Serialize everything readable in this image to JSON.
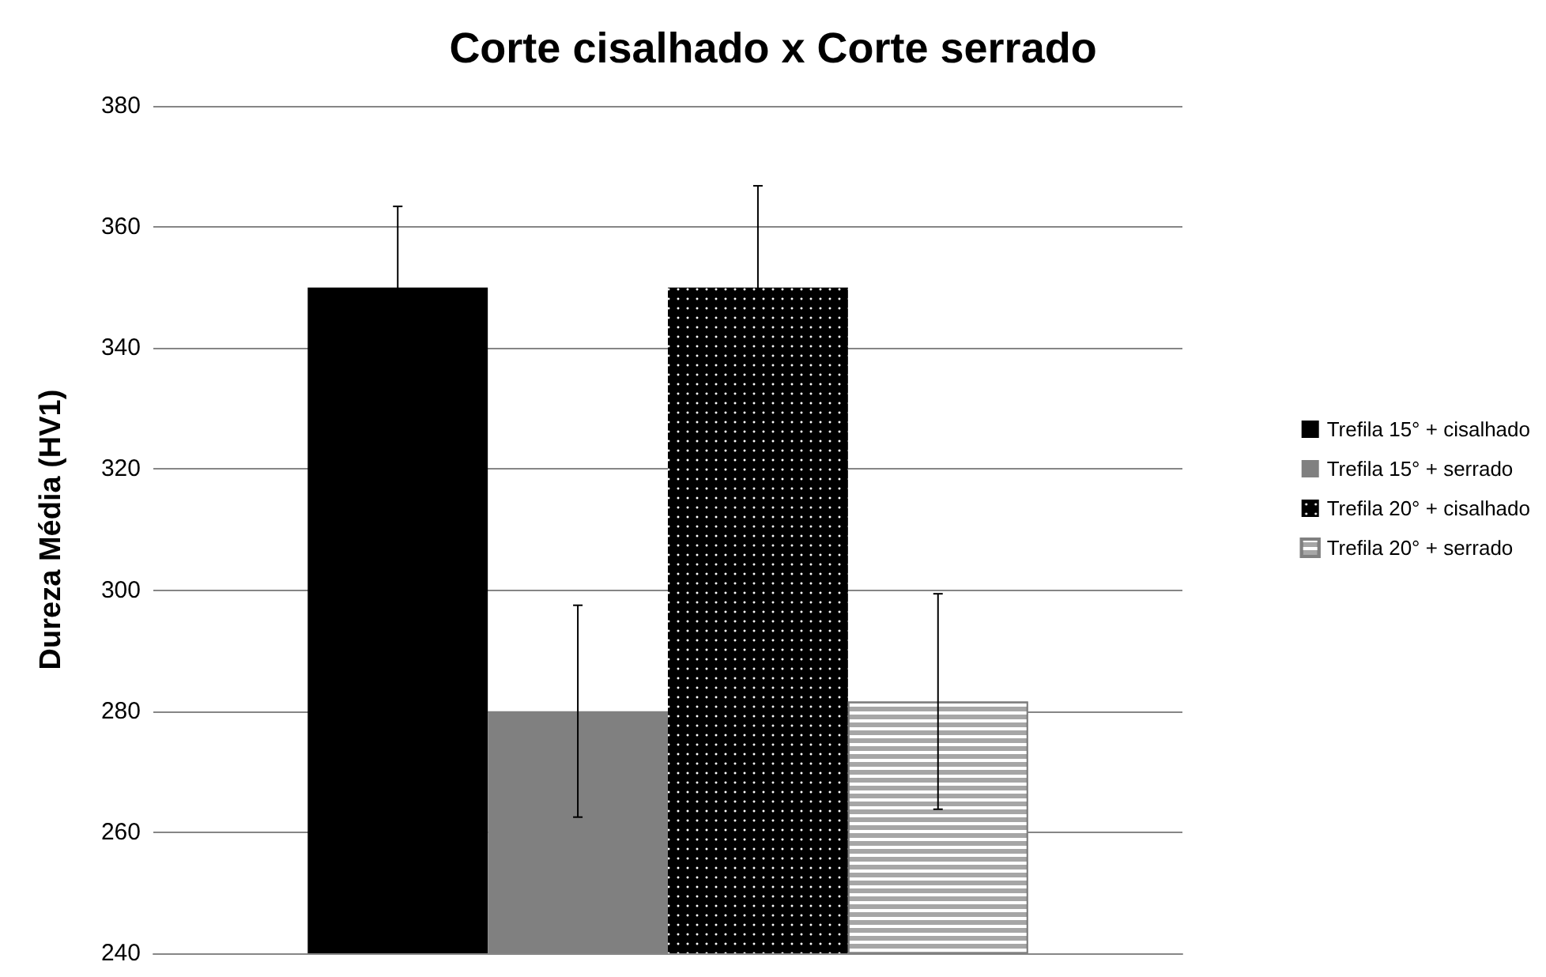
{
  "chart_data": {
    "type": "bar",
    "title": "Corte cisalhado x Corte serrado",
    "ylabel": "Dureza Média (HV1)",
    "categories": [
      null
    ],
    "series": [
      {
        "name": "Trefila 15° + cisalhado",
        "color": "#000000",
        "values": [
          350
        ],
        "errors": [
          13.4
        ]
      },
      {
        "name": "Trefila 15° + serrado",
        "color": "#808080",
        "values": [
          280
        ],
        "errors": [
          17.5
        ]
      },
      {
        "name": "Trefila 20° + cisalhado",
        "color": "#000000",
        "values": [
          350
        ],
        "errors": [
          16.8
        ]
      },
      {
        "name": "Trefila 20° + serrado",
        "color": "#a6a6a6",
        "values": [
          281.6
        ],
        "errors": [
          17.8
        ]
      }
    ],
    "ylim": [
      240,
      380
    ],
    "yticks": [
      240,
      260,
      280,
      300,
      320,
      340,
      360,
      380
    ],
    "grid": "y",
    "legend": "right"
  }
}
